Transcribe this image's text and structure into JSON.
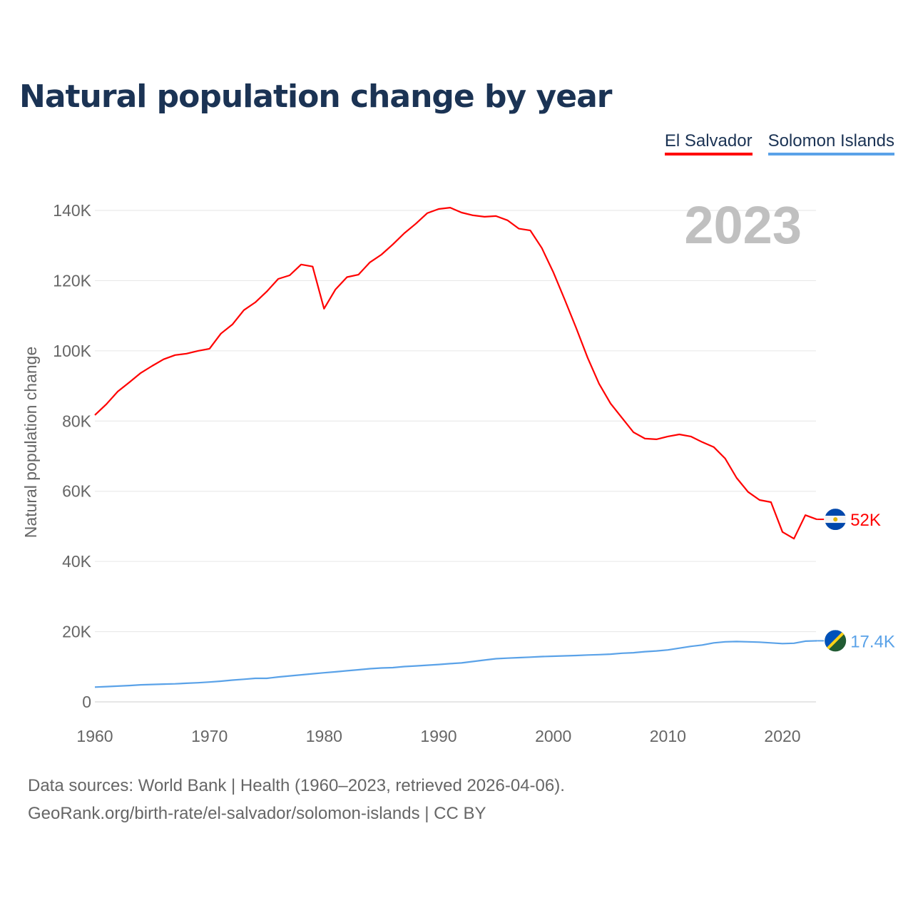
{
  "chart_data": {
    "type": "line",
    "title": "Natural population change by year",
    "ylabel": "Natural population change",
    "xlabel": "",
    "year_label": "2023",
    "xlim": [
      1960,
      2023
    ],
    "ylim": [
      0,
      140000
    ],
    "x_ticks": [
      1960,
      1970,
      1980,
      1990,
      2000,
      2010,
      2020
    ],
    "x_tick_labels": [
      "1960",
      "1970",
      "1980",
      "1990",
      "2000",
      "2010",
      "2020"
    ],
    "y_ticks": [
      0,
      20000,
      40000,
      60000,
      80000,
      100000,
      120000,
      140000
    ],
    "y_tick_labels": [
      "0",
      "20K",
      "40K",
      "60K",
      "80K",
      "100K",
      "120K",
      "140K"
    ],
    "grid": true,
    "legend_position": "top-right",
    "x": [
      1960,
      1961,
      1962,
      1963,
      1964,
      1965,
      1966,
      1967,
      1968,
      1969,
      1970,
      1971,
      1972,
      1973,
      1974,
      1975,
      1976,
      1977,
      1978,
      1979,
      1980,
      1981,
      1982,
      1983,
      1984,
      1985,
      1986,
      1987,
      1988,
      1989,
      1990,
      1991,
      1992,
      1993,
      1994,
      1995,
      1996,
      1997,
      1998,
      1999,
      2000,
      2001,
      2002,
      2003,
      2004,
      2005,
      2006,
      2007,
      2008,
      2009,
      2010,
      2011,
      2012,
      2013,
      2014,
      2015,
      2016,
      2017,
      2018,
      2019,
      2020,
      2021,
      2022,
      2023
    ],
    "series": [
      {
        "name": "El Salvador",
        "color": "#ff0000",
        "end_label": "52K",
        "flag": "el-salvador",
        "values": [
          81700,
          84800,
          88400,
          91000,
          93700,
          95700,
          97600,
          98800,
          99200,
          100000,
          100600,
          104900,
          107500,
          111600,
          113800,
          116900,
          120500,
          121500,
          124600,
          124000,
          112000,
          117500,
          121000,
          121700,
          125200,
          127400,
          130300,
          133500,
          136200,
          139200,
          140400,
          140800,
          139400,
          138600,
          138200,
          138400,
          137200,
          134800,
          134300,
          129300,
          122400,
          114600,
          106500,
          98000,
          90600,
          85000,
          80900,
          76800,
          75000,
          74800,
          75600,
          76200,
          75600,
          74000,
          72600,
          69300,
          63800,
          59800,
          57500,
          56900,
          48400,
          46500,
          53200,
          52000
        ]
      },
      {
        "name": "Solomon Islands",
        "color": "#5aa2e8",
        "end_label": "17.4K",
        "flag": "solomon-islands",
        "values": [
          4200,
          4350,
          4500,
          4650,
          4850,
          4950,
          5050,
          5150,
          5300,
          5450,
          5650,
          5900,
          6200,
          6450,
          6700,
          6700,
          7100,
          7400,
          7700,
          8000,
          8300,
          8550,
          8850,
          9150,
          9450,
          9650,
          9750,
          10050,
          10250,
          10450,
          10650,
          10900,
          11100,
          11500,
          11900,
          12300,
          12450,
          12600,
          12750,
          12900,
          13000,
          13100,
          13200,
          13350,
          13450,
          13600,
          13850,
          14000,
          14300,
          14500,
          14800,
          15300,
          15800,
          16200,
          16800,
          17100,
          17200,
          17100,
          17000,
          16800,
          16600,
          16700,
          17300,
          17400
        ]
      }
    ]
  },
  "footer": {
    "line1": "Data sources: World Bank | Health (1960–2023, retrieved 2026-04-06).",
    "line2": "GeoRank.org/birth-rate/el-salvador/solomon-islands | CC BY"
  }
}
